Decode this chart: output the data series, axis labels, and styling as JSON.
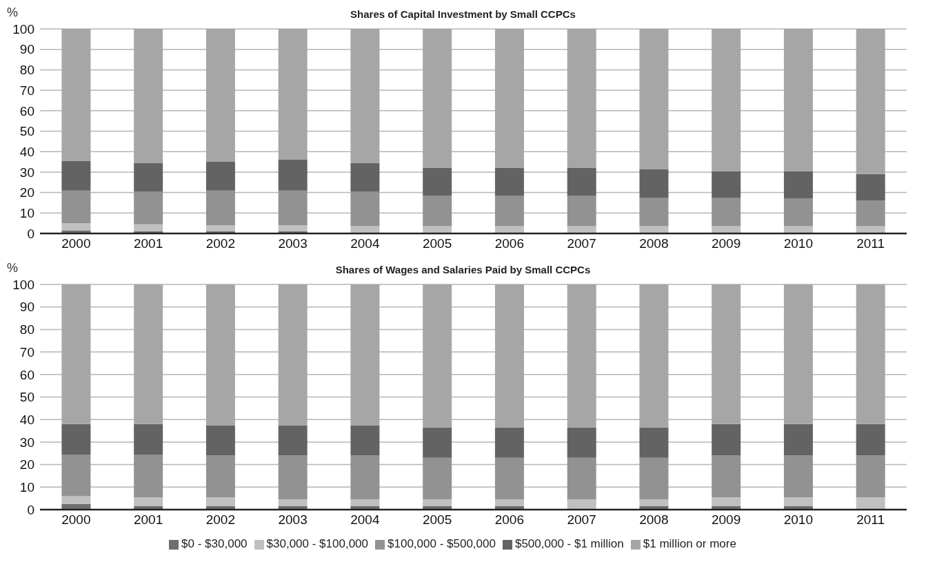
{
  "chart_data": [
    {
      "type": "bar",
      "title": "Shares of Capital Investment by Small CCPCs",
      "ylabel": "%",
      "stacked": true,
      "categories": [
        "2000",
        "2001",
        "2002",
        "2003",
        "2004",
        "2005",
        "2006",
        "2007",
        "2008",
        "2009",
        "2010",
        "2011"
      ],
      "ylim": [
        0,
        100
      ],
      "yticks": [
        0,
        10,
        20,
        30,
        40,
        50,
        60,
        70,
        80,
        90,
        100
      ],
      "grid": "y",
      "legend": false,
      "series": [
        {
          "color": "#6e6e6e",
          "values": [
            1.5,
            1,
            1,
            1,
            0.3,
            0.3,
            0.3,
            0.3,
            0.3,
            0.3,
            0.3,
            0.3
          ]
        },
        {
          "color": "#c0c0c0",
          "values": [
            3.5,
            3.5,
            3,
            3,
            3.2,
            3.2,
            3.2,
            3.2,
            3.2,
            3.2,
            3.2,
            3.2
          ]
        },
        {
          "color": "#929292",
          "values": [
            16,
            16,
            17,
            17,
            17,
            15,
            15,
            15,
            14,
            14,
            13.5,
            12.5
          ]
        },
        {
          "color": "#636363",
          "values": [
            14.5,
            14,
            14,
            15,
            14,
            13.5,
            13.5,
            13.5,
            14,
            13,
            13.5,
            13
          ]
        },
        {
          "color": "#a6a6a6",
          "values": [
            64.5,
            65.5,
            65,
            64,
            65.5,
            68,
            68,
            68,
            68.5,
            69.5,
            69.5,
            71
          ]
        }
      ]
    },
    {
      "type": "bar",
      "title": "Shares of Wages and Salaries Paid by Small CCPCs",
      "ylabel": "%",
      "stacked": true,
      "categories": [
        "2000",
        "2001",
        "2002",
        "2003",
        "2004",
        "2005",
        "2006",
        "2007",
        "2008",
        "2009",
        "2010",
        "2011"
      ],
      "ylim": [
        0,
        100
      ],
      "yticks": [
        0,
        10,
        20,
        30,
        40,
        50,
        60,
        70,
        80,
        90,
        100
      ],
      "grid": "y",
      "legend": "bottom",
      "series": [
        {
          "name": "$0 - $30,000",
          "color": "#6e6e6e",
          "values": [
            2.5,
            1.5,
            1.5,
            1.5,
            1.5,
            1.5,
            1.5,
            0.3,
            1.5,
            1.5,
            1.5,
            0.3
          ]
        },
        {
          "name": "$30,000 - $100,000",
          "color": "#c0c0c0",
          "values": [
            3.5,
            4,
            4,
            3,
            3,
            3,
            3,
            4.2,
            3,
            4,
            4,
            5.2
          ]
        },
        {
          "name": "$100,000 - $500,000",
          "color": "#929292",
          "values": [
            18.5,
            19,
            18.5,
            19.5,
            19.5,
            18.5,
            18.5,
            18.5,
            18.5,
            18.5,
            18.5,
            18.5
          ]
        },
        {
          "name": "$500,000 - $1 million",
          "color": "#636363",
          "values": [
            13.5,
            13.5,
            13.5,
            13.5,
            13.5,
            13.5,
            13.5,
            13.5,
            13.5,
            14,
            14,
            14
          ]
        },
        {
          "name": "$1 million or more",
          "color": "#a6a6a6",
          "values": [
            62,
            62,
            62.5,
            62.5,
            62.5,
            63.5,
            63.5,
            63.5,
            63.5,
            62,
            62,
            62
          ]
        }
      ]
    }
  ]
}
